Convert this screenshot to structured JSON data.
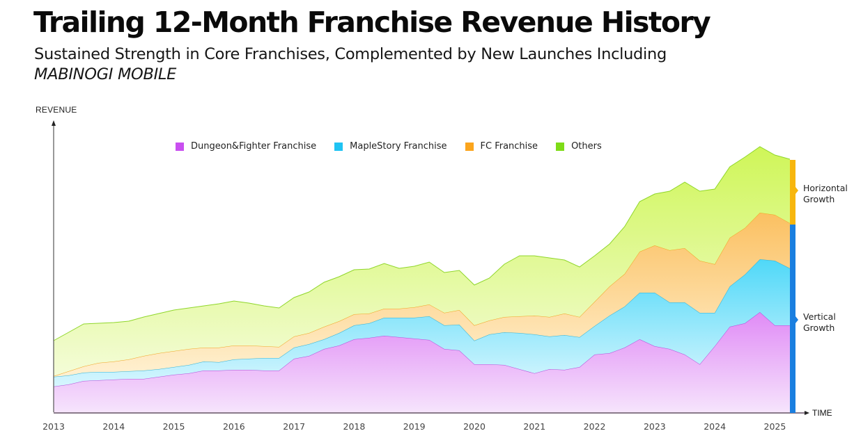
{
  "header": {
    "title": "Trailing 12-Month Franchise Revenue History",
    "subtitle_line1": "Sustained Strength in Core Franchises, Complemented by New Launches Including",
    "subtitle_line2": "MABINOGI MOBILE"
  },
  "annotations": {
    "y_axis_label": "REVENUE",
    "x_axis_label": "TIME",
    "horizontal_growth": [
      "Horizontal",
      "Growth"
    ],
    "vertical_growth": [
      "Vertical",
      "Growth"
    ],
    "horizontal_color": "#F7B60E",
    "vertical_color": "#1A7FE0"
  },
  "chart_data": {
    "type": "area",
    "stacked": true,
    "title": "Trailing 12-Month Franchise Revenue History",
    "xlabel": "TIME",
    "ylabel": "REVENUE",
    "y_units": "relative index (no numeric scale shown)",
    "ylim": [
      0,
      380
    ],
    "xlim": [
      2013,
      2025.25
    ],
    "grid": false,
    "legend": "top-center",
    "x_ticks": [
      "2013",
      "2014",
      "2015",
      "2016",
      "2017",
      "2018",
      "2019",
      "2020",
      "2021",
      "2022",
      "2023",
      "2024",
      "2025"
    ],
    "x": [
      2013.0,
      2013.25,
      2013.5,
      2013.75,
      2014.0,
      2014.25,
      2014.5,
      2014.75,
      2015.0,
      2015.25,
      2015.5,
      2015.75,
      2016.0,
      2016.25,
      2016.5,
      2016.75,
      2017.0,
      2017.25,
      2017.5,
      2017.75,
      2018.0,
      2018.25,
      2018.5,
      2018.75,
      2019.0,
      2019.25,
      2019.5,
      2019.75,
      2020.0,
      2020.25,
      2020.5,
      2020.75,
      2021.0,
      2021.25,
      2021.5,
      2021.75,
      2022.0,
      2022.25,
      2022.5,
      2022.75,
      2023.0,
      2023.25,
      2023.5,
      2023.75,
      2024.0,
      2024.25,
      2024.5,
      2024.75,
      2025.0,
      2025.25
    ],
    "series": [
      {
        "name": "Dungeon&Fighter Franchise",
        "color": "#C94FF0",
        "values": [
          37,
          40,
          45,
          46,
          47,
          48,
          48,
          51,
          54,
          56,
          60,
          60,
          61,
          61,
          60,
          60,
          77,
          81,
          91,
          96,
          105,
          107,
          110,
          108,
          106,
          104,
          91,
          89,
          69,
          69,
          68,
          62,
          56,
          62,
          61,
          65,
          83,
          85,
          93,
          105,
          95,
          91,
          83,
          69,
          95,
          123,
          128,
          144,
          125,
          125
        ]
      },
      {
        "name": "MapleStory Franchise",
        "color": "#1FC3F3",
        "values": [
          14,
          13,
          12,
          12,
          11,
          11,
          12,
          11,
          11,
          12,
          13,
          12,
          15,
          16,
          18,
          18,
          16,
          17,
          14,
          18,
          20,
          21,
          26,
          28,
          30,
          34,
          34,
          37,
          34,
          43,
          47,
          52,
          56,
          47,
          50,
          43,
          41,
          54,
          59,
          67,
          77,
          67,
          75,
          74,
          48,
          58,
          70,
          76,
          93,
          82
        ]
      },
      {
        "name": "FC Franchise",
        "color": "#FBA51D",
        "values": [
          1,
          6,
          9,
          13,
          15,
          17,
          21,
          23,
          23,
          23,
          20,
          21,
          20,
          19,
          17,
          16,
          16,
          16,
          18,
          17,
          16,
          14,
          13,
          13,
          15,
          17,
          18,
          21,
          22,
          20,
          22,
          24,
          27,
          28,
          31,
          29,
          35,
          42,
          47,
          59,
          68,
          75,
          78,
          75,
          70,
          70,
          67,
          67,
          66,
          65
        ]
      },
      {
        "name": "Others",
        "color": "#7EDC17",
        "values": [
          51,
          56,
          61,
          57,
          56,
          55,
          56,
          57,
          59,
          59,
          60,
          63,
          64,
          61,
          58,
          56,
          56,
          59,
          64,
          64,
          64,
          64,
          65,
          58,
          59,
          61,
          58,
          57,
          58,
          61,
          76,
          87,
          86,
          85,
          77,
          72,
          66,
          61,
          68,
          72,
          74,
          85,
          95,
          100,
          108,
          102,
          102,
          95,
          86,
          92
        ]
      }
    ]
  }
}
